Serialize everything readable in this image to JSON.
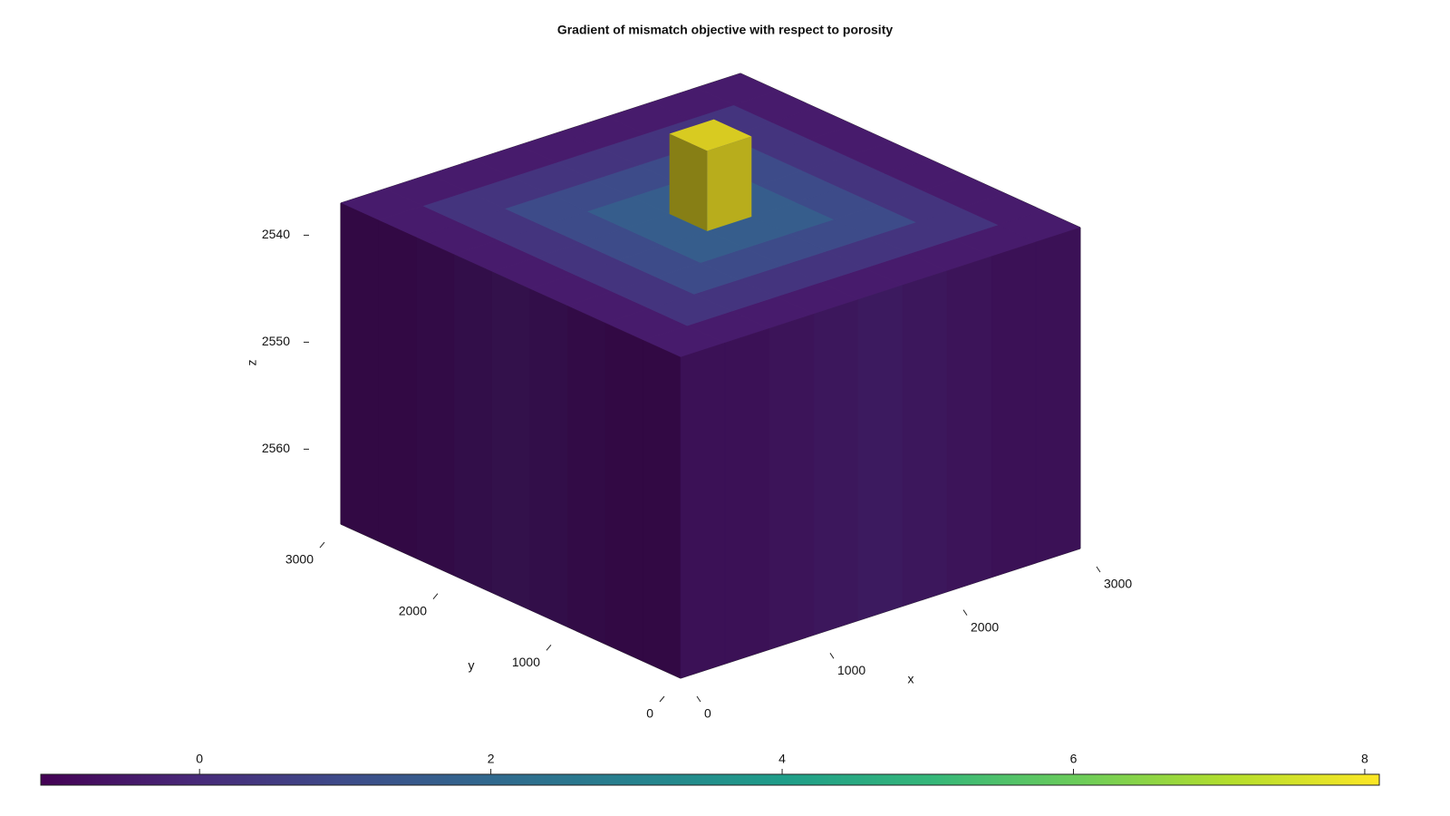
{
  "chart_data": {
    "type": "voxel3d",
    "title": "Gradient of mismatch objective with respect to porosity",
    "xlabel": "x",
    "ylabel": "y",
    "zlabel": "z",
    "xlim": [
      0,
      3000
    ],
    "ylim": [
      0,
      3000
    ],
    "zlim": [
      2537,
      2567
    ],
    "z_reversed": true,
    "xticks": [
      0,
      1000,
      2000,
      3000
    ],
    "yticks": [
      0,
      1000,
      2000,
      3000
    ],
    "zticks": [
      2540,
      2550,
      2560
    ],
    "top_values": [
      [
        -0.4,
        -0.4,
        -0.4,
        -0.4,
        -0.4,
        -0.4,
        -0.4,
        -0.4,
        -0.4
      ],
      [
        -0.4,
        0.3,
        0.3,
        0.3,
        0.3,
        0.3,
        0.3,
        0.3,
        -0.4
      ],
      [
        -0.4,
        0.3,
        1.0,
        1.0,
        1.0,
        1.0,
        1.0,
        0.3,
        -0.4
      ],
      [
        -0.4,
        0.3,
        1.0,
        1.6,
        1.6,
        1.6,
        1.0,
        0.3,
        -0.4
      ],
      [
        -0.4,
        0.3,
        1.0,
        1.6,
        2.2,
        1.6,
        1.0,
        0.3,
        -0.4
      ],
      [
        -0.4,
        0.3,
        1.0,
        1.6,
        1.6,
        1.6,
        1.0,
        0.3,
        -0.4
      ],
      [
        -0.4,
        0.3,
        1.0,
        1.0,
        1.0,
        1.0,
        1.0,
        0.3,
        -0.4
      ],
      [
        -0.4,
        0.3,
        0.3,
        0.3,
        0.3,
        0.3,
        0.3,
        0.3,
        -0.4
      ],
      [
        -0.4,
        -0.4,
        -0.4,
        -0.4,
        -0.4,
        -0.4,
        -0.4,
        -0.4,
        -0.4
      ]
    ],
    "x0_face_values": [
      -0.8,
      -0.8,
      -0.7,
      -0.6,
      -0.5,
      -0.6,
      -0.7,
      -0.8,
      -0.8
    ],
    "y0_face_values": [
      -0.6,
      -0.6,
      -0.5,
      -0.4,
      -0.3,
      -0.4,
      -0.5,
      -0.6,
      -0.6
    ],
    "peak_value": 8,
    "colormap": "viridis",
    "clim": [
      -1.09,
      8.1
    ],
    "cticks": [
      0,
      2,
      4,
      6,
      8
    ]
  }
}
